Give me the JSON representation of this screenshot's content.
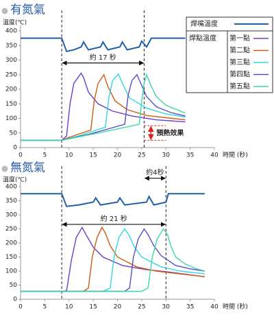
{
  "chart_data": [
    {
      "type": "line",
      "title": "有氮氣",
      "y_label": "溫度(℃)",
      "x_label": "時間 (秒)",
      "xlim": [
        0,
        40
      ],
      "ylim": [
        0,
        400
      ],
      "xticks": [
        0,
        5,
        10,
        15,
        20,
        25,
        30,
        35,
        40
      ],
      "yticks": [
        0,
        50,
        100,
        150,
        200,
        250,
        300,
        350,
        400
      ],
      "legend": true,
      "legend_group_title": "焊點溫度",
      "guides": [
        8.5,
        25.5
      ],
      "annotations": [
        {
          "text": "約 17 秒",
          "x": [
            8.5,
            25.5
          ],
          "y": 290,
          "color": "#111111"
        },
        {
          "text": "預熱效果",
          "x": [
            25.5,
            30
          ],
          "y": [
            25,
            75
          ],
          "color": "#e02020"
        }
      ],
      "series": [
        {
          "name": "焊嘴溫度",
          "color": "#1f5fa8",
          "x": [
            0,
            8.5,
            9.5,
            11,
            12.5,
            13,
            14,
            16.5,
            17,
            18,
            20.5,
            21,
            22,
            24.5,
            25,
            26,
            27,
            34
          ],
          "values": [
            375,
            375,
            330,
            335,
            345,
            362,
            335,
            345,
            362,
            335,
            345,
            362,
            335,
            345,
            365,
            345,
            375,
            375
          ]
        },
        {
          "name": "第一點",
          "color": "#6a3cc8",
          "x": [
            0,
            8.5,
            9.5,
            10.2,
            11,
            12.5,
            13,
            14,
            16,
            19,
            23,
            28,
            34
          ],
          "values": [
            25,
            25,
            40,
            150,
            220,
            255,
            240,
            190,
            150,
            125,
            108,
            95,
            88
          ]
        },
        {
          "name": "第二點",
          "color": "#d05a10",
          "x": [
            0,
            8.5,
            10,
            14.5,
            15.2,
            16,
            17.2,
            18,
            19.5,
            22,
            26,
            34
          ],
          "values": [
            25,
            25,
            35,
            60,
            160,
            220,
            250,
            210,
            160,
            130,
            110,
            95
          ]
        },
        {
          "name": "第三點",
          "color": "#33d6e0",
          "x": [
            0,
            8.5,
            12,
            17.5,
            18.2,
            19,
            20.2,
            21,
            22.5,
            26,
            30,
            34
          ],
          "values": [
            25,
            25,
            40,
            70,
            170,
            230,
            252,
            220,
            170,
            135,
            115,
            105
          ]
        },
        {
          "name": "第四點",
          "color": "#5a4cc8",
          "x": [
            0,
            8.5,
            14,
            21.5,
            22.2,
            23,
            24,
            24.8,
            26,
            28,
            31,
            34
          ],
          "values": [
            25,
            25,
            45,
            80,
            180,
            230,
            250,
            220,
            175,
            140,
            120,
            108
          ]
        },
        {
          "name": "第五點",
          "color": "#3cd6a8",
          "x": [
            0,
            8.5,
            16,
            24.5,
            25,
            25.5,
            26,
            27,
            28,
            30,
            34
          ],
          "values": [
            25,
            25,
            50,
            80,
            160,
            220,
            250,
            210,
            175,
            145,
            118
          ]
        }
      ]
    },
    {
      "type": "line",
      "title": "無氮氣",
      "y_label": "溫度(℃)",
      "x_label": "時間 (秒)",
      "xlim": [
        0,
        40
      ],
      "ylim": [
        0,
        400
      ],
      "xticks": [
        0,
        5,
        10,
        15,
        20,
        25,
        30,
        35,
        40
      ],
      "yticks": [
        0,
        50,
        100,
        150,
        200,
        250,
        300,
        350,
        400
      ],
      "legend": false,
      "guides": [
        8.5,
        30
      ],
      "annotations": [
        {
          "text": "約4秒",
          "x": [
            25.5,
            30
          ],
          "y": 430,
          "color": "#111111"
        },
        {
          "text": "約 21 秒",
          "x": [
            8.5,
            30
          ],
          "y": 266,
          "color": "#111111"
        }
      ],
      "series": [
        {
          "name": "焊嘴溫度",
          "color": "#1f5fa8",
          "x": [
            0,
            8.5,
            9.5,
            12,
            15,
            15.5,
            16.5,
            20,
            20.5,
            21.5,
            26,
            26.5,
            27.5,
            30,
            30.5,
            38
          ],
          "values": [
            375,
            375,
            330,
            335,
            345,
            360,
            335,
            345,
            360,
            335,
            345,
            365,
            335,
            345,
            375,
            375
          ]
        },
        {
          "name": "第一點",
          "color": "#6a3cc8",
          "x": [
            0,
            8.5,
            9.5,
            10.5,
            11.5,
            12.7,
            13.5,
            15,
            17,
            21,
            26,
            30,
            38
          ],
          "values": [
            28,
            28,
            30,
            140,
            220,
            255,
            230,
            185,
            150,
            120,
            105,
            98,
            80
          ]
        },
        {
          "name": "第二點",
          "color": "#d05a10",
          "x": [
            0,
            13,
            14,
            14.8,
            15.8,
            16.8,
            17.5,
            18.5,
            20,
            24,
            28,
            38
          ],
          "values": [
            28,
            28,
            40,
            150,
            220,
            255,
            235,
            190,
            150,
            115,
            100,
            80
          ]
        },
        {
          "name": "第三點",
          "color": "#33d6e0",
          "x": [
            0,
            17,
            18.5,
            19.3,
            20.3,
            21.5,
            22.3,
            23.5,
            25,
            29,
            33,
            38
          ],
          "values": [
            28,
            28,
            40,
            150,
            220,
            250,
            230,
            185,
            150,
            115,
            100,
            90
          ]
        },
        {
          "name": "第四點",
          "color": "#5a4cc8",
          "x": [
            0,
            21.5,
            22.5,
            23.3,
            24.3,
            25.5,
            26.3,
            27.5,
            29,
            32,
            35,
            38
          ],
          "values": [
            28,
            28,
            40,
            150,
            215,
            250,
            230,
            190,
            155,
            120,
            108,
            100
          ]
        },
        {
          "name": "第五點",
          "color": "#3cd6a8",
          "x": [
            0,
            25,
            26.3,
            27.2,
            28.2,
            29.5,
            30.3,
            31,
            32,
            34,
            36,
            38
          ],
          "values": [
            28,
            28,
            40,
            150,
            215,
            250,
            230,
            190,
            150,
            125,
            110,
            100
          ]
        }
      ]
    }
  ]
}
